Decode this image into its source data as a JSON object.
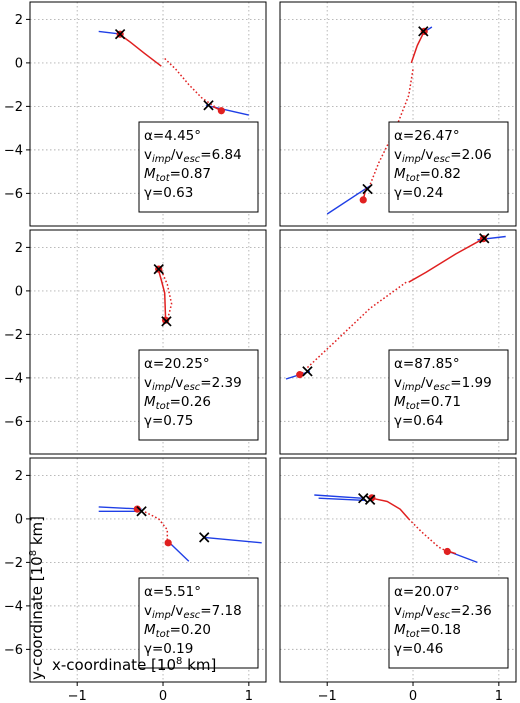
{
  "axes": {
    "xlabel_text": "x-coordinate [10",
    "xlabel_exp": "8",
    "xlabel_unit": " km]",
    "ylabel_text": "y-coordinate [10",
    "ylabel_exp": "8",
    "ylabel_unit": " km]",
    "xticks": [
      "−1",
      "0",
      "1"
    ],
    "yticks": [
      "2",
      "0",
      "−2",
      "−4",
      "−6"
    ]
  },
  "colors": {
    "impactor": "#1f3fe6",
    "post": "#e02020",
    "marker_x": "#000000",
    "grid": "#b0b0b0"
  },
  "chart_data": [
    {
      "type": "scatter",
      "panel": "top-left",
      "xlim": [
        -1.55,
        1.2
      ],
      "ylim": [
        -7.5,
        2.8
      ],
      "grid": true,
      "alpha": "4.45°",
      "v_ratio": "6.84",
      "M_tot": "0.87",
      "gamma": "0.63",
      "blue": [
        [
          [
            -0.75,
            1.45
          ],
          [
            -0.48,
            1.32
          ]
        ],
        [
          [
            0.5,
            -1.95
          ],
          [
            1.0,
            -2.4
          ]
        ]
      ],
      "red_solid": [
        [
          [
            -0.52,
            1.35
          ],
          [
            -0.38,
            0.95
          ],
          [
            -0.22,
            0.45
          ],
          [
            -0.02,
            -0.15
          ]
        ],
        [
          [
            0.58,
            -2.0
          ],
          [
            0.68,
            -2.2
          ]
        ]
      ],
      "red_dotted": [
        [
          [
            0.02,
            0.2
          ],
          [
            0.15,
            -0.3
          ],
          [
            0.3,
            -1.0
          ],
          [
            0.45,
            -1.6
          ],
          [
            0.6,
            -2.0
          ]
        ]
      ],
      "red_dots": [
        [
          -0.5,
          1.32
        ],
        [
          0.68,
          -2.2
        ]
      ],
      "x_marks": [
        [
          -0.5,
          1.32
        ],
        [
          0.53,
          -1.95
        ]
      ]
    },
    {
      "type": "scatter",
      "panel": "top-right",
      "xlim": [
        -1.55,
        1.2
      ],
      "ylim": [
        -7.5,
        2.8
      ],
      "grid": true,
      "alpha": "26.47°",
      "v_ratio": "2.06",
      "M_tot": "0.82",
      "gamma": "0.24",
      "blue": [
        [
          [
            0.08,
            1.3
          ],
          [
            0.22,
            1.65
          ]
        ],
        [
          [
            -0.5,
            -5.65
          ],
          [
            -1.0,
            -6.95
          ]
        ]
      ],
      "red_solid": [
        [
          [
            0.13,
            1.45
          ],
          [
            0.05,
            0.8
          ],
          [
            -0.02,
            0.0
          ]
        ],
        [
          [
            -0.55,
            -5.8
          ],
          [
            -0.58,
            -6.3
          ]
        ]
      ],
      "red_dotted": [
        [
          [
            0.0,
            -0.3
          ],
          [
            -0.05,
            -1.5
          ],
          [
            -0.2,
            -3.0
          ],
          [
            -0.4,
            -4.6
          ],
          [
            -0.52,
            -5.8
          ]
        ]
      ],
      "red_dots": [
        [
          0.13,
          1.45
        ],
        [
          -0.58,
          -6.3
        ]
      ],
      "x_marks": [
        [
          0.12,
          1.45
        ],
        [
          -0.53,
          -5.8
        ]
      ]
    },
    {
      "type": "scatter",
      "panel": "middle-left",
      "xlim": [
        -1.55,
        1.2
      ],
      "ylim": [
        -7.5,
        2.8
      ],
      "grid": true,
      "alpha": "20.25°",
      "v_ratio": "2.39",
      "M_tot": "0.26",
      "gamma": "0.75",
      "blue": [],
      "red_solid": [
        [
          [
            -0.06,
            1.05
          ],
          [
            -0.02,
            0.5
          ],
          [
            0.02,
            -0.1
          ],
          [
            0.03,
            -1.3
          ]
        ]
      ],
      "red_dotted": [
        [
          [
            -0.02,
            0.95
          ],
          [
            0.05,
            0.3
          ],
          [
            0.1,
            -0.6
          ],
          [
            0.05,
            -1.35
          ]
        ]
      ],
      "red_dots": [
        [
          -0.05,
          1.0
        ],
        [
          0.03,
          -1.35
        ]
      ],
      "x_marks": [
        [
          -0.05,
          1.0
        ],
        [
          0.04,
          -1.4
        ]
      ]
    },
    {
      "type": "scatter",
      "panel": "middle-right",
      "xlim": [
        -1.55,
        1.2
      ],
      "ylim": [
        -7.5,
        2.8
      ],
      "grid": true,
      "alpha": "87.85°",
      "v_ratio": "1.99",
      "M_tot": "0.71",
      "gamma": "0.64",
      "blue": [
        [
          [
            0.75,
            2.35
          ],
          [
            1.08,
            2.5
          ]
        ],
        [
          [
            -1.2,
            -3.7
          ],
          [
            -1.48,
            -4.05
          ]
        ]
      ],
      "red_solid": [
        [
          [
            0.82,
            2.4
          ],
          [
            0.5,
            1.7
          ],
          [
            0.15,
            0.85
          ],
          [
            -0.05,
            0.4
          ]
        ],
        [
          [
            -1.28,
            -3.75
          ],
          [
            -1.35,
            -3.9
          ]
        ]
      ],
      "red_dotted": [
        [
          [
            -0.08,
            0.4
          ],
          [
            -0.5,
            -0.8
          ],
          [
            -0.9,
            -2.3
          ],
          [
            -1.25,
            -3.6
          ]
        ]
      ],
      "red_dots": [
        [
          0.82,
          2.4
        ],
        [
          -1.32,
          -3.85
        ]
      ],
      "x_marks": [
        [
          0.83,
          2.42
        ],
        [
          -1.23,
          -3.7
        ]
      ]
    },
    {
      "type": "scatter",
      "panel": "bottom-left",
      "xlim": [
        -1.55,
        1.2
      ],
      "ylim": [
        -7.5,
        2.8
      ],
      "grid": true,
      "alpha": "5.51°",
      "v_ratio": "7.18",
      "M_tot": "0.20",
      "gamma": "0.19",
      "blue": [
        [
          [
            -0.25,
            0.45
          ],
          [
            -0.75,
            0.55
          ]
        ],
        [
          [
            -0.28,
            0.35
          ],
          [
            -0.75,
            0.35
          ]
        ],
        [
          [
            0.48,
            -0.85
          ],
          [
            1.15,
            -1.1
          ]
        ],
        [
          [
            0.05,
            -1.0
          ],
          [
            0.3,
            -1.95
          ]
        ]
      ],
      "red_solid": [
        [
          [
            -0.27,
            0.45
          ],
          [
            -0.32,
            0.45
          ]
        ],
        [
          [
            0.05,
            -1.05
          ],
          [
            0.1,
            -1.2
          ]
        ]
      ],
      "red_dotted": [
        [
          [
            -0.25,
            0.4
          ],
          [
            -0.05,
            0.0
          ],
          [
            0.05,
            -0.5
          ],
          [
            0.05,
            -1.05
          ]
        ]
      ],
      "red_dots": [
        [
          -0.3,
          0.45
        ],
        [
          0.06,
          -1.1
        ]
      ],
      "x_marks": [
        [
          -0.25,
          0.35
        ],
        [
          0.48,
          -0.85
        ]
      ]
    },
    {
      "type": "scatter",
      "panel": "bottom-right",
      "xlim": [
        -1.55,
        1.2
      ],
      "ylim": [
        -7.5,
        2.8
      ],
      "grid": true,
      "alpha": "20.07°",
      "v_ratio": "2.36",
      "M_tot": "0.18",
      "gamma": "0.46",
      "blue": [
        [
          [
            -0.6,
            0.95
          ],
          [
            -1.15,
            1.1
          ]
        ],
        [
          [
            -0.55,
            0.85
          ],
          [
            -1.1,
            0.95
          ]
        ],
        [
          [
            0.38,
            -1.45
          ],
          [
            0.75,
            -2.0
          ]
        ]
      ],
      "red_solid": [
        [
          [
            -0.48,
            0.95
          ],
          [
            -0.3,
            0.8
          ],
          [
            -0.15,
            0.45
          ],
          [
            -0.05,
            0.0
          ]
        ],
        [
          [
            0.38,
            -1.45
          ],
          [
            0.5,
            -1.6
          ]
        ]
      ],
      "red_dotted": [
        [
          [
            -0.05,
            0.0
          ],
          [
            0.1,
            -0.6
          ],
          [
            0.3,
            -1.3
          ],
          [
            0.4,
            -1.5
          ]
        ]
      ],
      "red_dots": [
        [
          -0.48,
          0.97
        ],
        [
          0.4,
          -1.5
        ]
      ],
      "x_marks": [
        [
          -0.58,
          0.95
        ],
        [
          -0.5,
          0.88
        ]
      ]
    }
  ]
}
